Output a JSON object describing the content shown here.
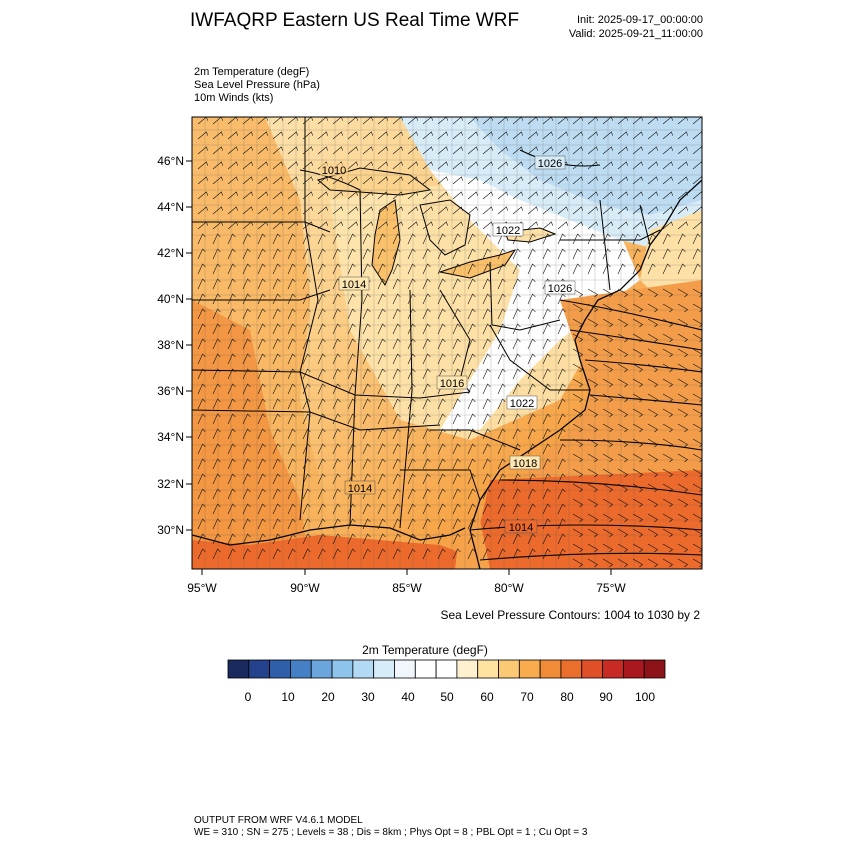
{
  "header": {
    "title": "IWFAQRP Eastern US Real Time WRF",
    "init": "Init: 2025-09-17_00:00:00",
    "valid": "Valid: 2025-09-21_11:00:00"
  },
  "fields": [
    "2m Temperature   (degF)",
    "Sea Level Pressure   (hPa)",
    "10m Winds   (kts)"
  ],
  "map": {
    "lat_labels": [
      "46°N",
      "44°N",
      "42°N",
      "40°N",
      "38°N",
      "36°N",
      "34°N",
      "32°N",
      "30°N"
    ],
    "lon_labels": [
      "95°W",
      "90°W",
      "85°W",
      "80°W",
      "75°W"
    ],
    "pressure_labels": [
      "1010",
      "1026",
      "1022",
      "1014",
      "1026",
      "1016",
      "1022",
      "1018",
      "1014",
      "1014"
    ]
  },
  "contour_note": "Sea Level Pressure Contours: 1004 to 1030 by 2",
  "colorbar": {
    "title": "2m Temperature  (degF)",
    "ticks": [
      "0",
      "10",
      "20",
      "30",
      "40",
      "50",
      "60",
      "70",
      "80",
      "90",
      "100"
    ],
    "colors": [
      "#1b2a5e",
      "#24428c",
      "#2f5fa8",
      "#4680c4",
      "#6aa5dc",
      "#8ec4ec",
      "#b2daf4",
      "#d6ecf8",
      "#f0f6fb",
      "#ffffff",
      "#ffffff",
      "#fff1cf",
      "#fde2a0",
      "#fbc873",
      "#f8ac4e",
      "#f08c38",
      "#ea6e2c",
      "#e05028",
      "#c82a24",
      "#a8181e",
      "#8c1418"
    ]
  },
  "footer": {
    "line1": "OUTPUT FROM WRF V4.6.1 MODEL",
    "line2": "WE = 310 ; SN = 275 ; Levels = 38 ; Dis = 8km ; Phys Opt = 8 ; PBL Opt = 1 ; Cu Opt = 3"
  }
}
